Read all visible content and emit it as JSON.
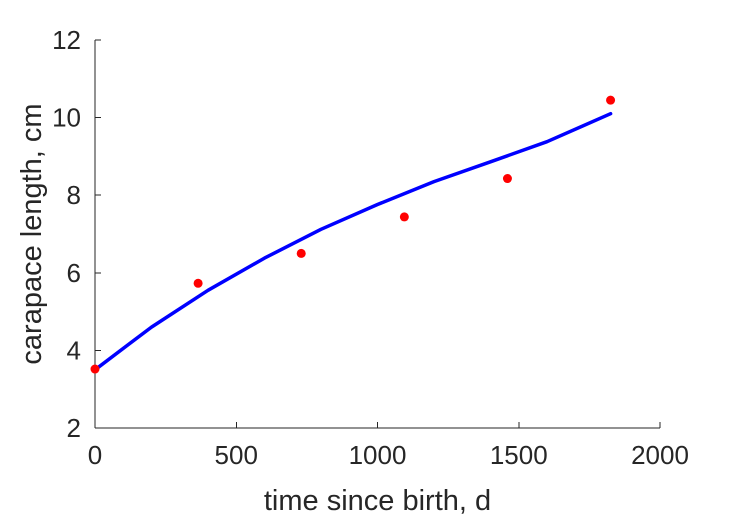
{
  "chart_data": {
    "type": "scatter",
    "title": "",
    "xlabel": "time since birth, d",
    "ylabel": "carapace length, cm",
    "xlim": [
      0,
      2000
    ],
    "ylim": [
      2,
      12
    ],
    "xticks": [
      "0",
      "500",
      "1000",
      "1500",
      "2000"
    ],
    "yticks": [
      "2",
      "4",
      "6",
      "8",
      "10",
      "12"
    ],
    "grid": false,
    "series": [
      {
        "kind": "scatter",
        "color": "#ff0000",
        "x": [
          0,
          365,
          730,
          1095,
          1460,
          1825
        ],
        "y": [
          3.52,
          5.73,
          6.5,
          7.44,
          8.43,
          10.45
        ]
      },
      {
        "kind": "line",
        "color": "#0000ff",
        "x": [
          0,
          200,
          400,
          600,
          800,
          1000,
          1200,
          1400,
          1600,
          1825
        ],
        "y": [
          3.5,
          4.6,
          5.55,
          6.38,
          7.12,
          7.76,
          8.35,
          8.86,
          9.38,
          10.1
        ]
      }
    ]
  }
}
